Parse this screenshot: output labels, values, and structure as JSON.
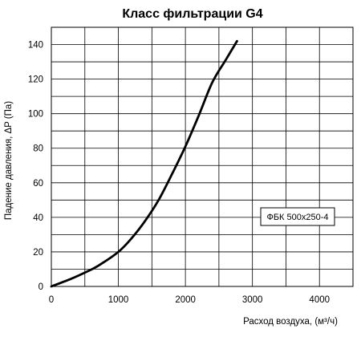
{
  "chart_data": {
    "type": "line",
    "title": "Класс фильтрации G4",
    "xlabel": "Расход воздуха, (м³/ч)",
    "ylabel": "Падение давления, ΔP (Па)",
    "xlim": [
      0,
      4500
    ],
    "ylim": [
      0,
      150
    ],
    "xticks": [
      0,
      1000,
      2000,
      3000,
      4000
    ],
    "yticks": [
      0,
      20,
      40,
      60,
      80,
      100,
      120,
      140
    ],
    "x_minor_step": 500,
    "y_minor_step": 10,
    "grid": true,
    "legend": "ФБК 500х250-4",
    "legend_position": "right",
    "series": [
      {
        "x": [
          0,
          300,
          500,
          700,
          1000,
          1200,
          1400,
          1600,
          1800,
          2000,
          2200,
          2400,
          2600,
          2770
        ],
        "y": [
          0,
          4.5,
          8,
          12,
          20,
          28,
          38,
          50,
          65,
          81,
          99,
          118,
          131,
          142
        ]
      }
    ],
    "colors": {
      "line": "#000000",
      "grid": "#000000",
      "background": "#ffffff"
    }
  }
}
